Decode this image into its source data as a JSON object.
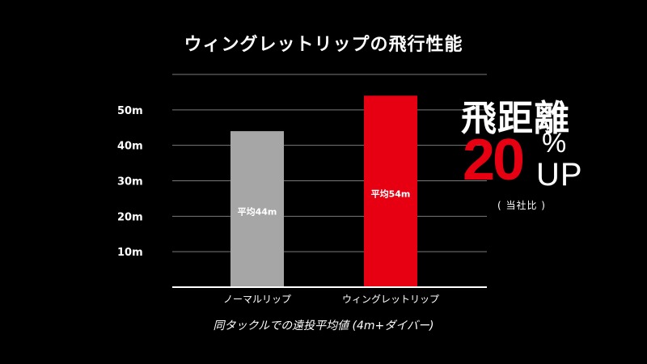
{
  "chart_data": {
    "type": "bar",
    "title": "ウィングレットリップの飛行性能",
    "categories": [
      "ノーマルリップ",
      "ウィングレットリップ"
    ],
    "values": [
      44,
      54
    ],
    "bar_labels": [
      "平均44m",
      "平均54m"
    ],
    "bar_colors": [
      "#a6a6a6",
      "#e60012"
    ],
    "ylim": [
      0,
      60
    ],
    "yticks": [
      {
        "value": 10,
        "label": "10m"
      },
      {
        "value": 20,
        "label": "20m"
      },
      {
        "value": 30,
        "label": "30m"
      },
      {
        "value": 40,
        "label": "40m"
      },
      {
        "value": 50,
        "label": "50m"
      }
    ],
    "grid": true,
    "xlabel": "同タックルでの遠投平均値 (4m+ダイバー)",
    "ylabel": ""
  },
  "callout": {
    "headline": "飛距離",
    "number": "20",
    "percent": "%",
    "up": "UP",
    "note": "( 当社比 )",
    "number_color": "#e60012"
  },
  "colors": {
    "background": "#000000",
    "text": "#ffffff",
    "grid": "#7a7a7a",
    "axis": "#ffffff",
    "accent": "#e60012"
  }
}
